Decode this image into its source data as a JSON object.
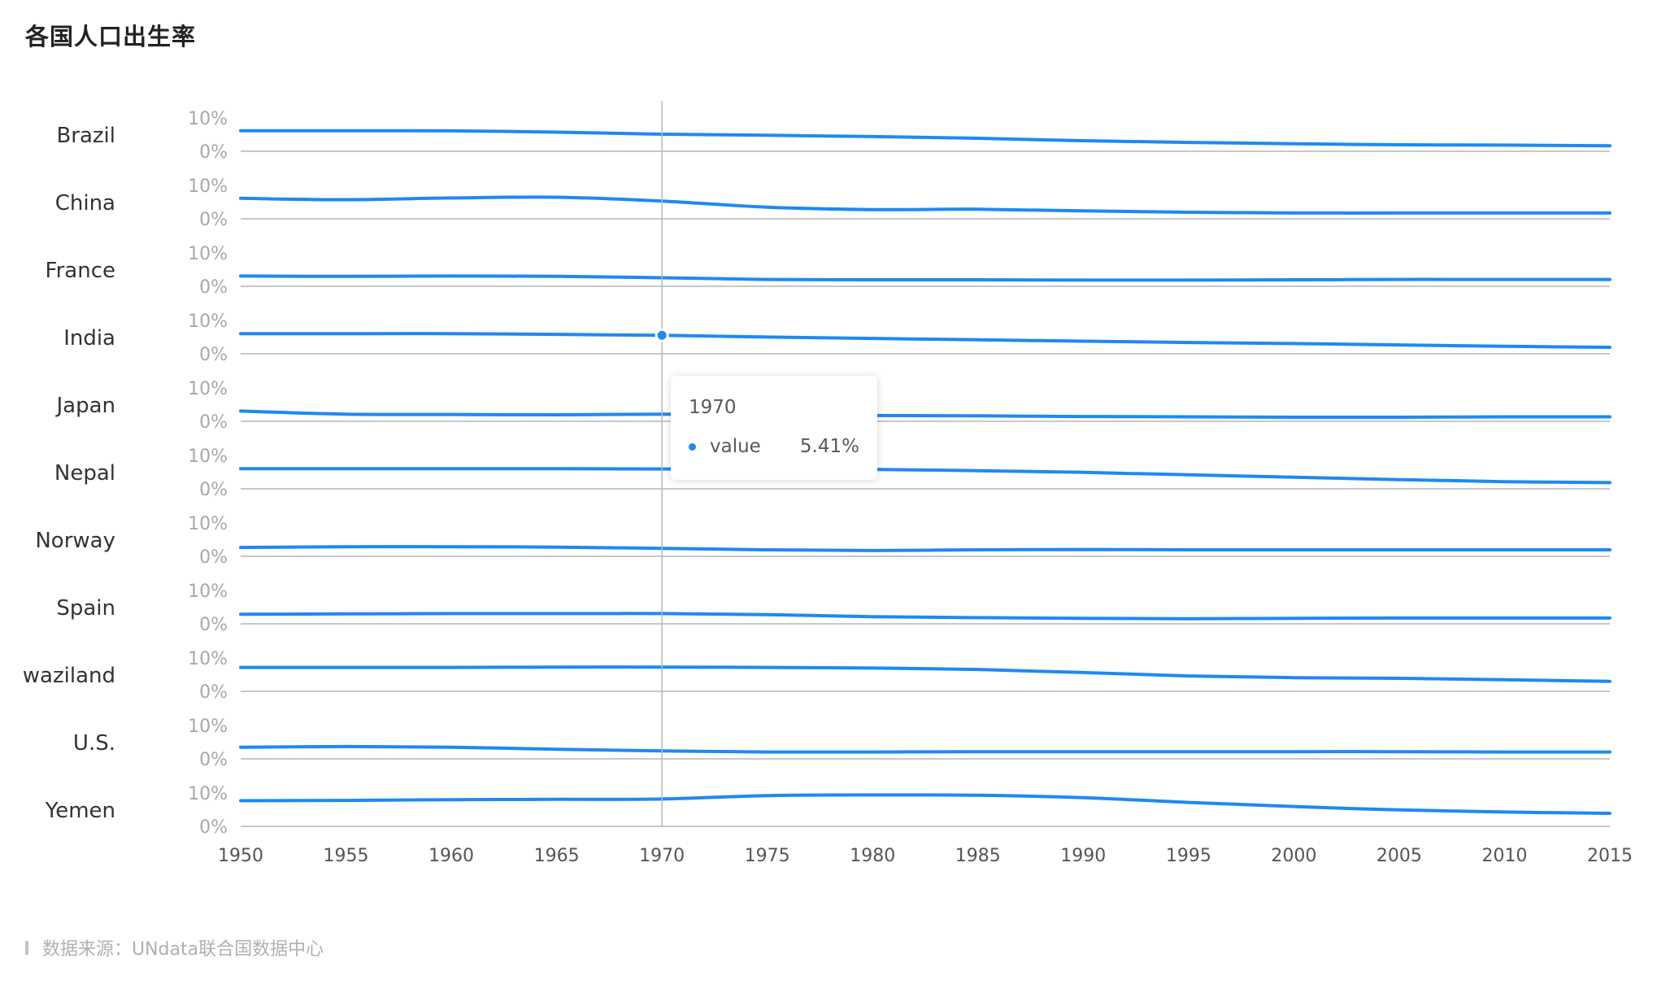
{
  "title": "各国人口出生率",
  "source": "数据来源：UNdata联合国数据中心",
  "colors": {
    "line": "#1d8af2",
    "axis": "#c8c8c8",
    "crosshair": "#b8b8b8"
  },
  "tooltip": {
    "year": "1970",
    "series": "value",
    "value": "5.41%"
  },
  "chart_data": {
    "type": "line",
    "layout": "small-multiples",
    "x": [
      1950,
      1955,
      1960,
      1965,
      1970,
      1975,
      1980,
      1985,
      1990,
      1995,
      2000,
      2005,
      2010,
      2015
    ],
    "x_ticks": [
      "1950",
      "1955",
      "1960",
      "1965",
      "1970",
      "1975",
      "1980",
      "1985",
      "1990",
      "1995",
      "2000",
      "2005",
      "2010",
      "2015"
    ],
    "y_ticks": [
      "10%",
      "0%"
    ],
    "ylim": [
      0,
      0.1
    ],
    "active_x": 1970,
    "active_series": "India",
    "series": [
      {
        "name": "Brazil",
        "values": [
          0.06,
          0.06,
          0.0598,
          0.056,
          0.05,
          0.047,
          0.043,
          0.038,
          0.031,
          0.026,
          0.022,
          0.019,
          0.018,
          0.016
        ]
      },
      {
        "name": "China",
        "values": [
          0.06,
          0.056,
          0.061,
          0.063,
          0.052,
          0.034,
          0.027,
          0.028,
          0.023,
          0.019,
          0.017,
          0.017,
          0.017,
          0.017
        ]
      },
      {
        "name": "France",
        "values": [
          0.03,
          0.029,
          0.03,
          0.029,
          0.025,
          0.02,
          0.019,
          0.019,
          0.018,
          0.018,
          0.019,
          0.02,
          0.02,
          0.02
        ]
      },
      {
        "name": "India",
        "values": [
          0.059,
          0.059,
          0.059,
          0.057,
          0.0541,
          0.049,
          0.045,
          0.041,
          0.037,
          0.033,
          0.03,
          0.026,
          0.022,
          0.019
        ]
      },
      {
        "name": "Japan",
        "values": [
          0.03,
          0.021,
          0.02,
          0.019,
          0.021,
          0.019,
          0.017,
          0.016,
          0.014,
          0.013,
          0.012,
          0.012,
          0.013,
          0.013
        ]
      },
      {
        "name": "Nepal",
        "values": [
          0.059,
          0.059,
          0.059,
          0.059,
          0.058,
          0.058,
          0.057,
          0.053,
          0.048,
          0.041,
          0.034,
          0.027,
          0.021,
          0.018
        ]
      },
      {
        "name": "Norway",
        "values": [
          0.026,
          0.028,
          0.028,
          0.027,
          0.023,
          0.019,
          0.017,
          0.019,
          0.02,
          0.019,
          0.019,
          0.019,
          0.019,
          0.019
        ]
      },
      {
        "name": "Spain",
        "values": [
          0.028,
          0.029,
          0.03,
          0.03,
          0.03,
          0.027,
          0.021,
          0.018,
          0.016,
          0.015,
          0.016,
          0.017,
          0.017,
          0.017
        ]
      },
      {
        "name": "waziland",
        "values": [
          0.07,
          0.07,
          0.07,
          0.071,
          0.071,
          0.07,
          0.068,
          0.064,
          0.055,
          0.045,
          0.04,
          0.038,
          0.034,
          0.029
        ]
      },
      {
        "name": "U.S.",
        "values": [
          0.034,
          0.036,
          0.034,
          0.028,
          0.023,
          0.02,
          0.02,
          0.021,
          0.021,
          0.021,
          0.021,
          0.021,
          0.02,
          0.02
        ]
      },
      {
        "name": "Yemen",
        "values": [
          0.075,
          0.076,
          0.078,
          0.079,
          0.08,
          0.09,
          0.092,
          0.091,
          0.084,
          0.07,
          0.058,
          0.048,
          0.042,
          0.038
        ]
      }
    ]
  }
}
